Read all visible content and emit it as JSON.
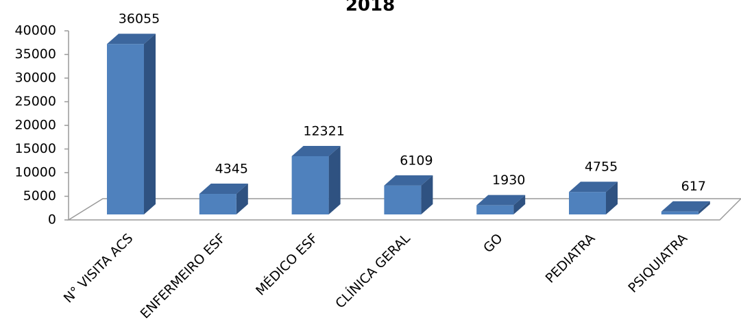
{
  "chart_data": {
    "type": "bar3d",
    "title": "2018",
    "categories": [
      "N° VISITA ACS",
      "ENFERMEIRO ESF",
      "MÉDICO ESF",
      "CLÍNICA GERAL",
      "GO",
      "PEDIATRA",
      "PSIQUIATRA"
    ],
    "values": [
      36055,
      4345,
      12321,
      6109,
      1930,
      4755,
      617
    ],
    "color": "#4f81bd",
    "ylim": [
      0,
      40000
    ],
    "yticks": [
      0,
      5000,
      10000,
      15000,
      20000,
      25000,
      30000,
      35000,
      40000
    ]
  }
}
